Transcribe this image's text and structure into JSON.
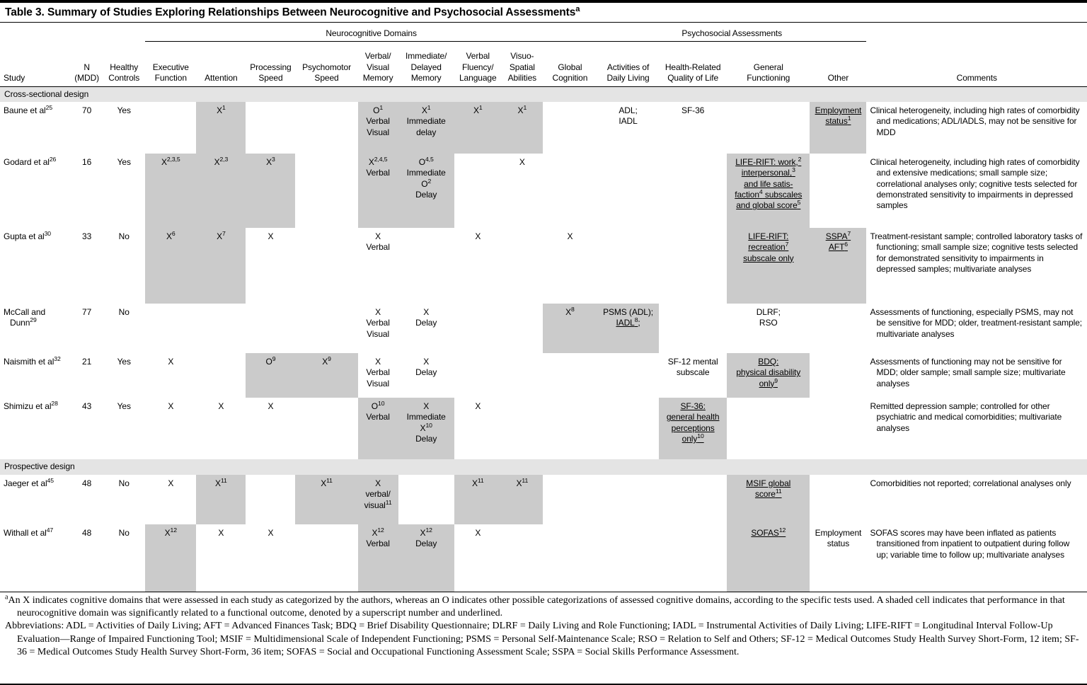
{
  "table": {
    "title": "Table 3. Summary of Studies Exploring Relationships Between Neurocognitive and Psychosocial Assessments^{a}",
    "groups": [
      {
        "label": "Neurocognitive Domains",
        "span": 9
      },
      {
        "label": "Psychosocial Assessments",
        "span": 4
      }
    ],
    "columns": [
      {
        "key": "study",
        "label": "Study"
      },
      {
        "key": "n",
        "label": "N\n(MDD)"
      },
      {
        "key": "controls",
        "label": "Healthy\nControls"
      },
      {
        "key": "exec",
        "label": "Executive\nFunction"
      },
      {
        "key": "attention",
        "label": "Attention"
      },
      {
        "key": "processing",
        "label": "Processing\nSpeed"
      },
      {
        "key": "psychomotor",
        "label": "Psychomotor\nSpeed"
      },
      {
        "key": "verbal_visual",
        "label": "Verbal/\nVisual\nMemory"
      },
      {
        "key": "imm_delayed",
        "label": "Immediate/\nDelayed\nMemory"
      },
      {
        "key": "fluency",
        "label": "Verbal\nFluency/\nLanguage"
      },
      {
        "key": "visuospatial",
        "label": "Visuo-\nSpatial\nAbilities"
      },
      {
        "key": "global",
        "label": "Global\nCognition"
      },
      {
        "key": "adl",
        "label": "Activities of\nDaily Living"
      },
      {
        "key": "hrqol",
        "label": "Health-Related\nQuality of Life"
      },
      {
        "key": "general",
        "label": "General\nFunctioning"
      },
      {
        "key": "other",
        "label": "Other"
      },
      {
        "key": "comments",
        "label": "Comments"
      }
    ],
    "sections": [
      {
        "label": "Cross-sectional design",
        "rows": [
          {
            "cells": [
              {
                "text": "Baune et al^{25}"
              },
              {
                "text": "70"
              },
              {
                "text": "Yes"
              },
              {
                "text": ""
              },
              {
                "text": "X^{1}",
                "shaded": true
              },
              {
                "text": ""
              },
              {
                "text": ""
              },
              {
                "text": "O^{1}\nVerbal\nVisual",
                "shaded": true
              },
              {
                "text": "X^{1}\nImmediate\ndelay",
                "shaded": true
              },
              {
                "text": "X^{1}",
                "shaded": true
              },
              {
                "text": "X^{1}",
                "shaded": true
              },
              {
                "text": ""
              },
              {
                "text": "ADL;\nIADL"
              },
              {
                "text": "SF-36"
              },
              {
                "text": ""
              },
              {
                "text": "__Employment\nstatus^{1}__",
                "shaded": true
              },
              {
                "text": "Clinical heterogeneity, including high rates of comorbidity and medications; ADL/IADLS, may not be sensitive for MDD"
              }
            ]
          },
          {
            "cells": [
              {
                "text": "Godard et al^{26}"
              },
              {
                "text": "16"
              },
              {
                "text": "Yes"
              },
              {
                "text": "X^{2,3,5}",
                "shaded": true
              },
              {
                "text": "X^{2,3}",
                "shaded": true
              },
              {
                "text": "X^{3}",
                "shaded": true
              },
              {
                "text": ""
              },
              {
                "text": "X^{2,4,5}\nVerbal",
                "shaded": true
              },
              {
                "text": "O^{4,5}\nImmediate\nO^{2}\nDelay",
                "shaded": true
              },
              {
                "text": ""
              },
              {
                "text": "X"
              },
              {
                "text": ""
              },
              {
                "text": ""
              },
              {
                "text": ""
              },
              {
                "text": "__LIFE-RIFT: work,^{2}\ninterpersonal,^{3}\nand life satis-\nfaction^{4} subscales\nand global score^{5}__",
                "shaded": true
              },
              {
                "text": ""
              },
              {
                "text": "Clinical heterogeneity, including high rates of comorbidity and extensive medications; small sample size; correlational analyses only; cognitive tests selected for demonstrated sensitivity to impairments in depressed samples"
              }
            ]
          },
          {
            "cells": [
              {
                "text": "Gupta et al^{30}"
              },
              {
                "text": "33"
              },
              {
                "text": "No"
              },
              {
                "text": "X^{6}",
                "shaded": true
              },
              {
                "text": "X^{7}",
                "shaded": true
              },
              {
                "text": "X"
              },
              {
                "text": ""
              },
              {
                "text": "X\nVerbal"
              },
              {
                "text": ""
              },
              {
                "text": "X"
              },
              {
                "text": ""
              },
              {
                "text": "X"
              },
              {
                "text": ""
              },
              {
                "text": ""
              },
              {
                "text": "__LIFE-RIFT:\nrecreation^{7}\nsubscale only__",
                "shaded": true
              },
              {
                "text": "__SSPA^{7}__\n__AFT^{6}__",
                "shaded": true
              },
              {
                "text": "Treatment-resistant sample; controlled laboratory tasks of functioning; small sample size; cognitive tests selected for demonstrated sensitivity to impairments in depressed samples; multivariate analyses"
              }
            ]
          },
          {
            "cells": [
              {
                "text": "McCall and\nDunn^{29}"
              },
              {
                "text": "77"
              },
              {
                "text": "No"
              },
              {
                "text": ""
              },
              {
                "text": ""
              },
              {
                "text": ""
              },
              {
                "text": ""
              },
              {
                "text": "X\nVerbal\nVisual"
              },
              {
                "text": "X\nDelay"
              },
              {
                "text": ""
              },
              {
                "text": ""
              },
              {
                "text": "X^{8}",
                "shaded": true
              },
              {
                "text": "PSMS (ADL);\n__IADL^{8}__;",
                "shaded": true
              },
              {
                "text": ""
              },
              {
                "text": "DLRF;\nRSO"
              },
              {
                "text": ""
              },
              {
                "text": "Assessments of functioning, especially PSMS, may not be sensitive for MDD; older, treatment-resistant sample; multivariate analyses"
              }
            ]
          },
          {
            "cells": [
              {
                "text": "Naismith et al^{32}"
              },
              {
                "text": "21"
              },
              {
                "text": "Yes"
              },
              {
                "text": "X"
              },
              {
                "text": ""
              },
              {
                "text": "O^{9}",
                "shaded": true
              },
              {
                "text": "X^{9}",
                "shaded": true
              },
              {
                "text": "X\nVerbal\nVisual"
              },
              {
                "text": "X\nDelay"
              },
              {
                "text": ""
              },
              {
                "text": ""
              },
              {
                "text": ""
              },
              {
                "text": ""
              },
              {
                "text": "SF-12 mental\nsubscale"
              },
              {
                "text": "__BDQ:\nphysical disability\nonly^{9}__",
                "shaded": true
              },
              {
                "text": ""
              },
              {
                "text": "Assessments of functioning may not be sensitive for MDD; older sample; small sample size; multivariate analyses"
              }
            ]
          },
          {
            "cells": [
              {
                "text": "Shimizu et al^{28}"
              },
              {
                "text": "43"
              },
              {
                "text": "Yes"
              },
              {
                "text": "X"
              },
              {
                "text": "X"
              },
              {
                "text": "X"
              },
              {
                "text": ""
              },
              {
                "text": "O^{10}\nVerbal",
                "shaded": true
              },
              {
                "text": "X\nImmediate\nX^{10}\nDelay",
                "shaded": true
              },
              {
                "text": "X"
              },
              {
                "text": ""
              },
              {
                "text": ""
              },
              {
                "text": ""
              },
              {
                "text": "__SF-36:\ngeneral health\nperceptions\nonly^{10}__",
                "shaded": true
              },
              {
                "text": ""
              },
              {
                "text": ""
              },
              {
                "text": "Remitted depression sample; controlled for other psychiatric and medical comorbidities; multivariate analyses"
              }
            ]
          }
        ]
      },
      {
        "label": "Prospective design",
        "rows": [
          {
            "cells": [
              {
                "text": "Jaeger et al^{45}"
              },
              {
                "text": "48"
              },
              {
                "text": "No"
              },
              {
                "text": "X"
              },
              {
                "text": "X^{11}",
                "shaded": true
              },
              {
                "text": ""
              },
              {
                "text": "X^{11}",
                "shaded": true
              },
              {
                "text": "X\nverbal/\nvisual^{11}",
                "shaded": true
              },
              {
                "text": ""
              },
              {
                "text": "X^{11}",
                "shaded": true
              },
              {
                "text": "X^{11}",
                "shaded": true
              },
              {
                "text": ""
              },
              {
                "text": ""
              },
              {
                "text": ""
              },
              {
                "text": "__MSIF global\nscore^{11}__",
                "shaded": true
              },
              {
                "text": ""
              },
              {
                "text": "Comorbidities not reported; correlational analyses only"
              }
            ]
          },
          {
            "cells": [
              {
                "text": "Withall et al^{47}"
              },
              {
                "text": "48"
              },
              {
                "text": "No"
              },
              {
                "text": "X^{12}",
                "shaded": true
              },
              {
                "text": "X"
              },
              {
                "text": "X"
              },
              {
                "text": ""
              },
              {
                "text": "X^{12}\nVerbal",
                "shaded": true
              },
              {
                "text": "X^{12}\nDelay",
                "shaded": true
              },
              {
                "text": "X"
              },
              {
                "text": ""
              },
              {
                "text": ""
              },
              {
                "text": ""
              },
              {
                "text": ""
              },
              {
                "text": "__SOFAS^{12}__",
                "shaded": true
              },
              {
                "text": "Employment\nstatus"
              },
              {
                "text": "SOFAS scores may have been inflated as patients transitioned from inpatient to outpatient during follow up; variable time to follow up; multivariate analyses"
              }
            ]
          }
        ]
      }
    ],
    "footnotes": [
      "^{a}An X indicates cognitive domains that were assessed in each study as categorized by the authors, whereas an O indicates other possible categorizations of assessed cognitive domains, according to the specific tests used. A shaded cell indicates that performance in that neurocognitive domain was significantly related to a functional outcome, denoted by a superscript number and underlined.",
      "Abbreviations: ADL = Activities of Daily Living; AFT = Advanced Finances Task; BDQ = Brief Disability Questionnaire; DLRF = Daily Living and Role Functioning; IADL = Instrumental Activities of Daily Living; LIFE-RIFT = Longitudinal Interval Follow-Up Evaluation—Range of Impaired Functioning Tool; MSIF = Multidimensional Scale of Independent Functioning; PSMS = Personal Self-Maintenance Scale; RSO = Relation to Self and Others; SF-12 = Medical Outcomes Study Health Survey Short-Form, 12 item; SF-36 = Medical Outcomes Study Health Survey Short-Form, 36 item; SOFAS = Social and Occupational Functioning Assessment Scale; SSPA = Social Skills Performance Assessment."
    ]
  },
  "colors": {
    "shaded_cell": "#cbcbcb",
    "section_band": "#e4e4e4"
  }
}
